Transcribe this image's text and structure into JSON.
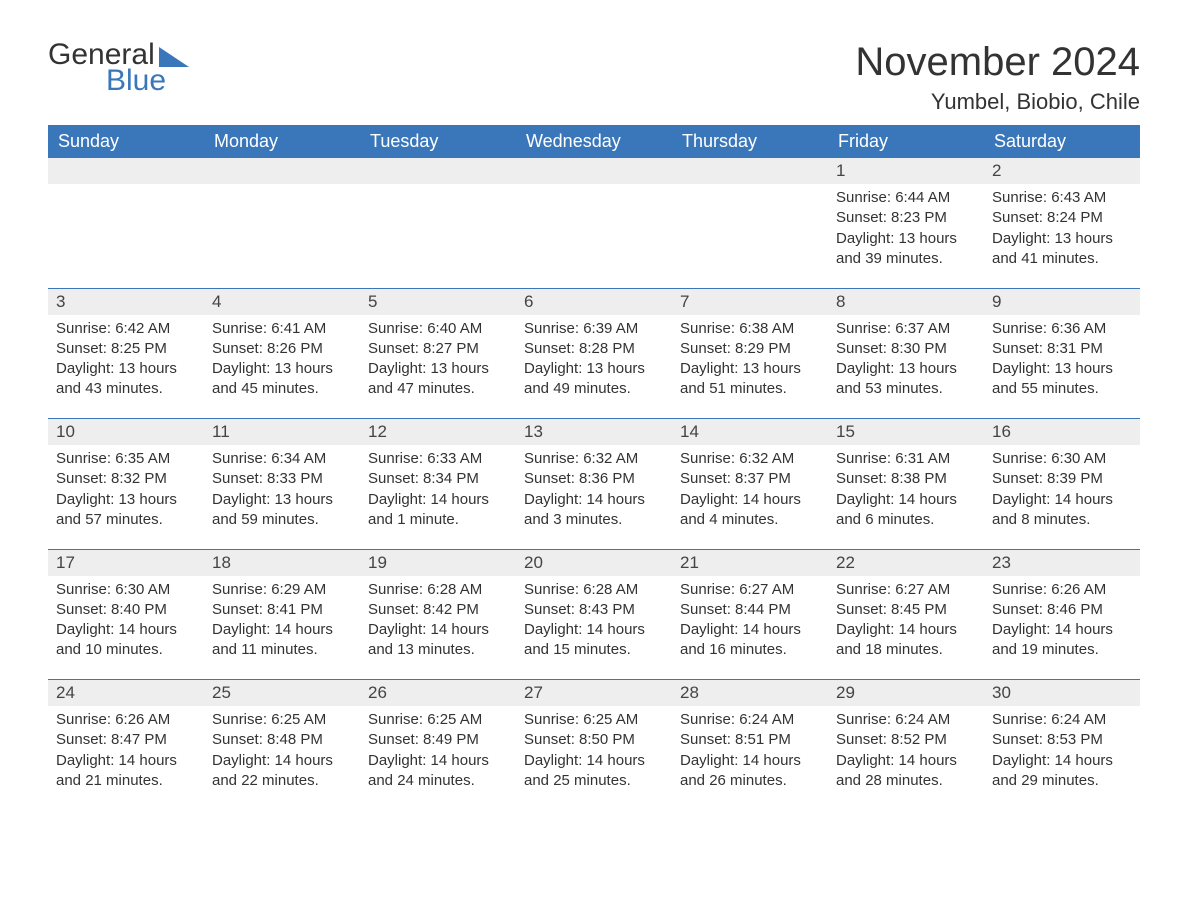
{
  "logo": {
    "word1": "General",
    "word2": "Blue",
    "accent_color": "#3a77ba",
    "text_color": "#333333"
  },
  "title": "November 2024",
  "location": "Yumbel, Biobio, Chile",
  "styling": {
    "header_bg": "#3a77ba",
    "header_text_color": "#ffffff",
    "daynum_bg": "#eeeeee",
    "row_sep_color": "#3a77ba",
    "body_bg": "#ffffff",
    "body_text_color": "#333333",
    "font_family": "Arial",
    "title_fontsize_pt": 30,
    "location_fontsize_pt": 16,
    "header_fontsize_pt": 14,
    "cell_fontsize_pt": 11
  },
  "day_labels": [
    "Sunday",
    "Monday",
    "Tuesday",
    "Wednesday",
    "Thursday",
    "Friday",
    "Saturday"
  ],
  "weeks": [
    [
      null,
      null,
      null,
      null,
      null,
      {
        "n": "1",
        "sunrise": "6:44 AM",
        "sunset": "8:23 PM",
        "daylight": "13 hours and 39 minutes."
      },
      {
        "n": "2",
        "sunrise": "6:43 AM",
        "sunset": "8:24 PM",
        "daylight": "13 hours and 41 minutes."
      }
    ],
    [
      {
        "n": "3",
        "sunrise": "6:42 AM",
        "sunset": "8:25 PM",
        "daylight": "13 hours and 43 minutes."
      },
      {
        "n": "4",
        "sunrise": "6:41 AM",
        "sunset": "8:26 PM",
        "daylight": "13 hours and 45 minutes."
      },
      {
        "n": "5",
        "sunrise": "6:40 AM",
        "sunset": "8:27 PM",
        "daylight": "13 hours and 47 minutes."
      },
      {
        "n": "6",
        "sunrise": "6:39 AM",
        "sunset": "8:28 PM",
        "daylight": "13 hours and 49 minutes."
      },
      {
        "n": "7",
        "sunrise": "6:38 AM",
        "sunset": "8:29 PM",
        "daylight": "13 hours and 51 minutes."
      },
      {
        "n": "8",
        "sunrise": "6:37 AM",
        "sunset": "8:30 PM",
        "daylight": "13 hours and 53 minutes."
      },
      {
        "n": "9",
        "sunrise": "6:36 AM",
        "sunset": "8:31 PM",
        "daylight": "13 hours and 55 minutes."
      }
    ],
    [
      {
        "n": "10",
        "sunrise": "6:35 AM",
        "sunset": "8:32 PM",
        "daylight": "13 hours and 57 minutes."
      },
      {
        "n": "11",
        "sunrise": "6:34 AM",
        "sunset": "8:33 PM",
        "daylight": "13 hours and 59 minutes."
      },
      {
        "n": "12",
        "sunrise": "6:33 AM",
        "sunset": "8:34 PM",
        "daylight": "14 hours and 1 minute."
      },
      {
        "n": "13",
        "sunrise": "6:32 AM",
        "sunset": "8:36 PM",
        "daylight": "14 hours and 3 minutes."
      },
      {
        "n": "14",
        "sunrise": "6:32 AM",
        "sunset": "8:37 PM",
        "daylight": "14 hours and 4 minutes."
      },
      {
        "n": "15",
        "sunrise": "6:31 AM",
        "sunset": "8:38 PM",
        "daylight": "14 hours and 6 minutes."
      },
      {
        "n": "16",
        "sunrise": "6:30 AM",
        "sunset": "8:39 PM",
        "daylight": "14 hours and 8 minutes."
      }
    ],
    [
      {
        "n": "17",
        "sunrise": "6:30 AM",
        "sunset": "8:40 PM",
        "daylight": "14 hours and 10 minutes."
      },
      {
        "n": "18",
        "sunrise": "6:29 AM",
        "sunset": "8:41 PM",
        "daylight": "14 hours and 11 minutes."
      },
      {
        "n": "19",
        "sunrise": "6:28 AM",
        "sunset": "8:42 PM",
        "daylight": "14 hours and 13 minutes."
      },
      {
        "n": "20",
        "sunrise": "6:28 AM",
        "sunset": "8:43 PM",
        "daylight": "14 hours and 15 minutes."
      },
      {
        "n": "21",
        "sunrise": "6:27 AM",
        "sunset": "8:44 PM",
        "daylight": "14 hours and 16 minutes."
      },
      {
        "n": "22",
        "sunrise": "6:27 AM",
        "sunset": "8:45 PM",
        "daylight": "14 hours and 18 minutes."
      },
      {
        "n": "23",
        "sunrise": "6:26 AM",
        "sunset": "8:46 PM",
        "daylight": "14 hours and 19 minutes."
      }
    ],
    [
      {
        "n": "24",
        "sunrise": "6:26 AM",
        "sunset": "8:47 PM",
        "daylight": "14 hours and 21 minutes."
      },
      {
        "n": "25",
        "sunrise": "6:25 AM",
        "sunset": "8:48 PM",
        "daylight": "14 hours and 22 minutes."
      },
      {
        "n": "26",
        "sunrise": "6:25 AM",
        "sunset": "8:49 PM",
        "daylight": "14 hours and 24 minutes."
      },
      {
        "n": "27",
        "sunrise": "6:25 AM",
        "sunset": "8:50 PM",
        "daylight": "14 hours and 25 minutes."
      },
      {
        "n": "28",
        "sunrise": "6:24 AM",
        "sunset": "8:51 PM",
        "daylight": "14 hours and 26 minutes."
      },
      {
        "n": "29",
        "sunrise": "6:24 AM",
        "sunset": "8:52 PM",
        "daylight": "14 hours and 28 minutes."
      },
      {
        "n": "30",
        "sunrise": "6:24 AM",
        "sunset": "8:53 PM",
        "daylight": "14 hours and 29 minutes."
      }
    ]
  ],
  "labels": {
    "sunrise": "Sunrise: ",
    "sunset": "Sunset: ",
    "daylight": "Daylight: "
  }
}
